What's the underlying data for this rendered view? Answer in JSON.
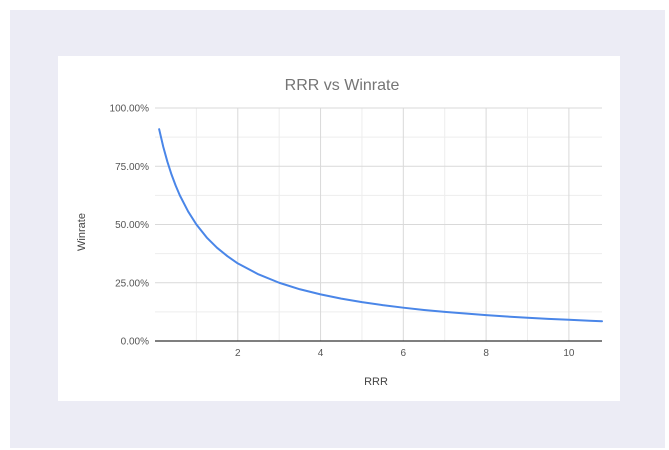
{
  "chart_data": {
    "type": "line",
    "title": "RRR vs Winrate",
    "xlabel": "RRR",
    "ylabel": "Winrate",
    "xlim": [
      0,
      10.8
    ],
    "ylim": [
      0,
      1
    ],
    "x_ticks": [
      2,
      4,
      6,
      8,
      10
    ],
    "y_ticks": [
      {
        "value": 0,
        "label": "0.00%"
      },
      {
        "value": 0.25,
        "label": "25.00%"
      },
      {
        "value": 0.5,
        "label": "50.00%"
      },
      {
        "value": 0.75,
        "label": "75.00%"
      },
      {
        "value": 1,
        "label": "100.00%"
      }
    ],
    "grid": true,
    "legend": "none",
    "line_color": "#4a86e8",
    "series": [
      {
        "x": [
          0.1,
          0.2,
          0.3,
          0.4,
          0.5,
          0.6,
          0.8,
          1.0,
          1.25,
          1.5,
          1.75,
          2.0,
          2.5,
          3.0,
          3.5,
          4.0,
          4.5,
          5.0,
          5.5,
          6.0,
          6.5,
          7.0,
          7.5,
          8.0,
          8.5,
          9.0,
          9.5,
          10.0,
          10.5,
          10.8
        ],
        "y": [
          0.909,
          0.833,
          0.769,
          0.714,
          0.667,
          0.625,
          0.556,
          0.5,
          0.444,
          0.4,
          0.364,
          0.333,
          0.286,
          0.25,
          0.222,
          0.2,
          0.182,
          0.167,
          0.154,
          0.143,
          0.133,
          0.125,
          0.118,
          0.111,
          0.105,
          0.1,
          0.095,
          0.091,
          0.087,
          0.085
        ]
      }
    ]
  }
}
